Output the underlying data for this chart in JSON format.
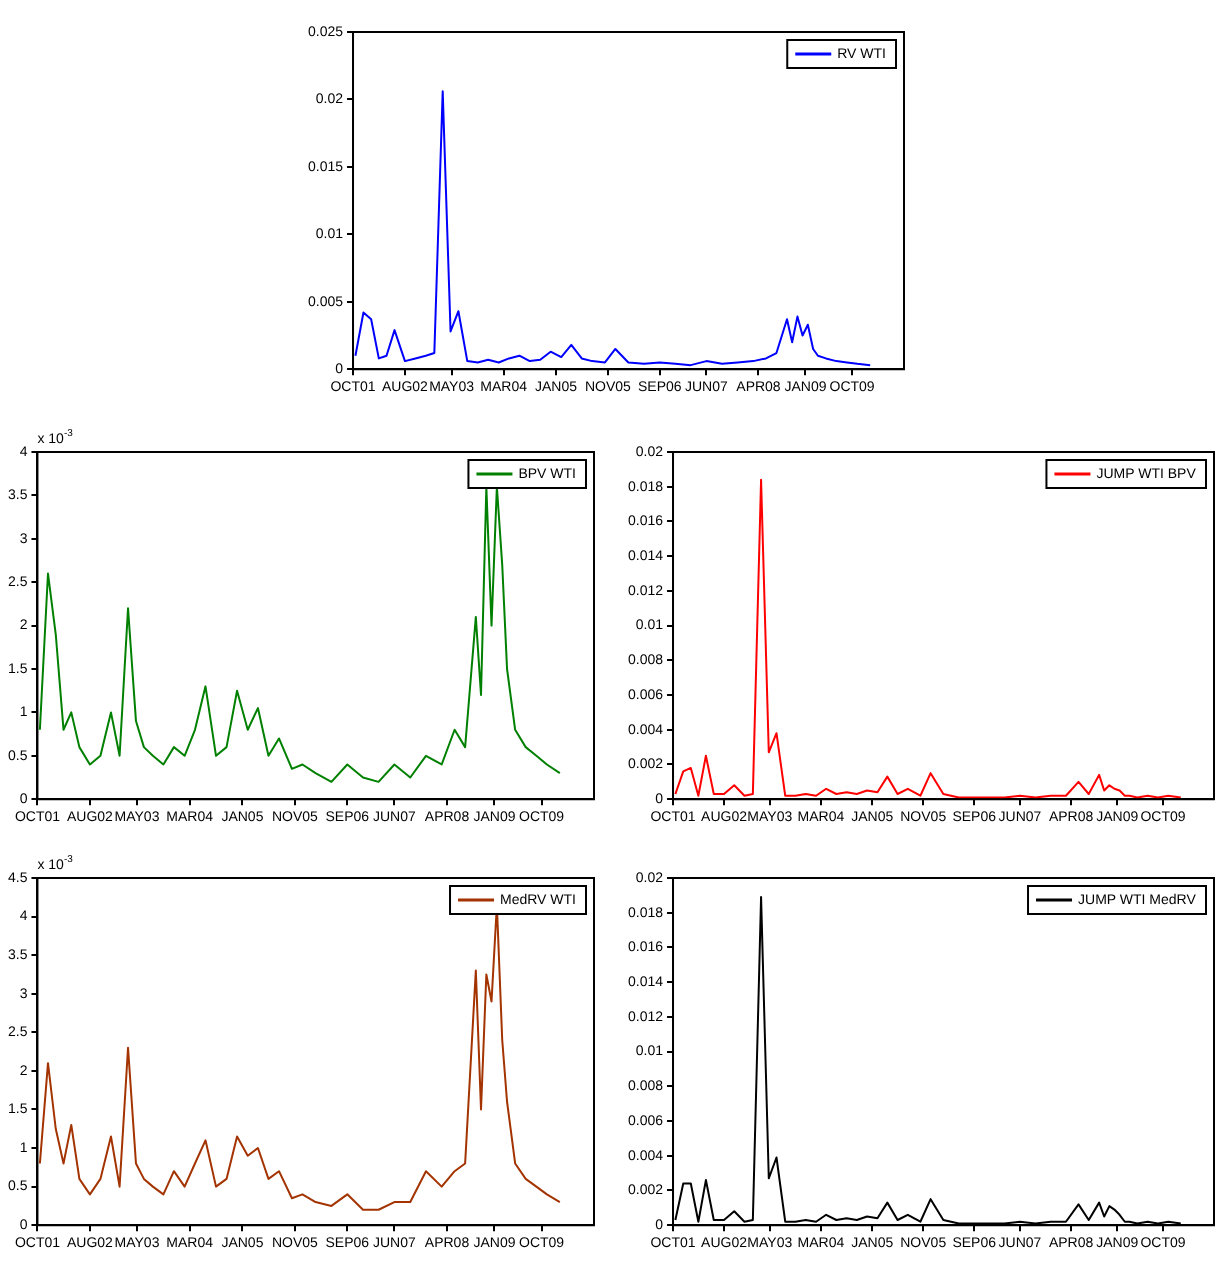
{
  "chart_data": [
    {
      "type": "line",
      "legend": "top right",
      "x": [
        "2001-10-15",
        "2001-12-01",
        "2002-01-15",
        "2002-03-01",
        "2002-04-15",
        "2002-06-01",
        "2002-08-01",
        "2002-10-01",
        "2002-12-01",
        "2003-01-20",
        "2003-03-10",
        "2003-04-25",
        "2003-06-10",
        "2003-08-01",
        "2003-10-01",
        "2003-12-01",
        "2004-02-01",
        "2004-04-01",
        "2004-06-01",
        "2004-08-01",
        "2004-10-01",
        "2004-12-01",
        "2005-02-01",
        "2005-04-01",
        "2005-06-01",
        "2005-08-01",
        "2005-10-15",
        "2005-12-15",
        "2006-03-01",
        "2006-06-01",
        "2006-09-01",
        "2006-12-01",
        "2007-03-01",
        "2007-06-01",
        "2007-09-01",
        "2007-12-01",
        "2008-03-01",
        "2008-05-15",
        "2008-07-15",
        "2008-09-15",
        "2008-10-15",
        "2008-11-15",
        "2008-12-15",
        "2009-01-15",
        "2009-02-15",
        "2009-03-15",
        "2009-05-01",
        "2009-07-01",
        "2009-09-01",
        "2009-11-01",
        "2010-01-15"
      ],
      "series": [
        {
          "name": "RV WTI",
          "color": "#0000ff",
          "values": [
            0.001,
            0.0042,
            0.0037,
            0.0008,
            0.001,
            0.0029,
            0.0006,
            0.0008,
            0.001,
            0.0012,
            0.0206,
            0.0028,
            0.0043,
            0.0006,
            0.0005,
            0.0007,
            0.0005,
            0.0008,
            0.001,
            0.0006,
            0.0007,
            0.0013,
            0.0009,
            0.0018,
            0.0008,
            0.0006,
            0.0005,
            0.0015,
            0.0005,
            0.0004,
            0.0005,
            0.0004,
            0.0003,
            0.0006,
            0.0004,
            0.0005,
            0.0006,
            0.0008,
            0.0012,
            0.0037,
            0.002,
            0.0039,
            0.0025,
            0.0033,
            0.0015,
            0.001,
            0.0008,
            0.0006,
            0.0005,
            0.0004,
            0.0003
          ]
        }
      ],
      "xlim": [
        "2001-10-01",
        "2010-08-01"
      ],
      "xticks": [
        {
          "value": "2001-10-01",
          "label": "OCT01"
        },
        {
          "value": "2002-08-01",
          "label": "AUG02"
        },
        {
          "value": "2003-05-01",
          "label": "MAY03"
        },
        {
          "value": "2004-03-01",
          "label": "MAR04"
        },
        {
          "value": "2005-01-01",
          "label": "JAN05"
        },
        {
          "value": "2005-11-01",
          "label": "NOV05"
        },
        {
          "value": "2006-09-01",
          "label": "SEP06"
        },
        {
          "value": "2007-06-01",
          "label": "JUN07"
        },
        {
          "value": "2008-04-01",
          "label": "APR08"
        },
        {
          "value": "2009-01-01",
          "label": "JAN09"
        },
        {
          "value": "2009-10-01",
          "label": "OCT09"
        }
      ],
      "ylim": [
        0,
        0.025
      ],
      "yticks": [
        0,
        0.005,
        0.01,
        0.015,
        0.02,
        0.025
      ]
    },
    {
      "type": "line",
      "legend": "top right",
      "annotations": [
        "x 10$^{-3}$"
      ],
      "x": [
        "2001-10-15",
        "2001-12-01",
        "2002-01-15",
        "2002-03-01",
        "2002-04-15",
        "2002-06-01",
        "2002-08-01",
        "2002-10-01",
        "2002-12-01",
        "2003-01-20",
        "2003-03-10",
        "2003-04-25",
        "2003-06-10",
        "2003-08-01",
        "2003-10-01",
        "2003-12-01",
        "2004-02-01",
        "2004-04-01",
        "2004-06-01",
        "2004-08-01",
        "2004-10-01",
        "2004-12-01",
        "2005-02-01",
        "2005-04-01",
        "2005-06-01",
        "2005-08-01",
        "2005-10-15",
        "2005-12-15",
        "2006-03-01",
        "2006-06-01",
        "2006-09-01",
        "2006-12-01",
        "2007-03-01",
        "2007-06-01",
        "2007-09-01",
        "2007-12-01",
        "2008-03-01",
        "2008-05-15",
        "2008-07-15",
        "2008-09-15",
        "2008-10-15",
        "2008-11-15",
        "2008-12-15",
        "2009-01-15",
        "2009-02-15",
        "2009-03-15",
        "2009-05-01",
        "2009-07-01",
        "2009-09-01",
        "2009-11-01",
        "2010-01-15"
      ],
      "series": [
        {
          "name": "BPV WTI",
          "color": "#008000",
          "values": [
            0.8,
            2.6,
            1.9,
            0.8,
            1.0,
            0.6,
            0.4,
            0.5,
            1.0,
            0.5,
            2.2,
            0.9,
            0.6,
            0.5,
            0.4,
            0.6,
            0.5,
            0.8,
            1.3,
            0.5,
            0.6,
            1.25,
            0.8,
            1.05,
            0.5,
            0.7,
            0.35,
            0.4,
            0.3,
            0.2,
            0.4,
            0.25,
            0.2,
            0.4,
            0.25,
            0.5,
            0.4,
            0.8,
            0.6,
            2.1,
            1.2,
            3.6,
            2.0,
            3.6,
            2.7,
            1.5,
            0.8,
            0.6,
            0.5,
            0.4,
            0.3
          ]
        }
      ],
      "xlim": [
        "2001-10-01",
        "2010-08-01"
      ],
      "xticks": [
        {
          "value": "2001-10-01",
          "label": "OCT01"
        },
        {
          "value": "2002-08-01",
          "label": "AUG02"
        },
        {
          "value": "2003-05-01",
          "label": "MAY03"
        },
        {
          "value": "2004-03-01",
          "label": "MAR04"
        },
        {
          "value": "2005-01-01",
          "label": "JAN05"
        },
        {
          "value": "2005-11-01",
          "label": "NOV05"
        },
        {
          "value": "2006-09-01",
          "label": "SEP06"
        },
        {
          "value": "2007-06-01",
          "label": "JUN07"
        },
        {
          "value": "2008-04-01",
          "label": "APR08"
        },
        {
          "value": "2009-01-01",
          "label": "JAN09"
        },
        {
          "value": "2009-10-01",
          "label": "OCT09"
        }
      ],
      "ylim": [
        0,
        4
      ],
      "yticks": [
        0,
        0.5,
        1,
        1.5,
        2,
        2.5,
        3,
        3.5,
        4
      ]
    },
    {
      "type": "line",
      "legend": "top right",
      "x": [
        "2001-10-15",
        "2001-12-01",
        "2002-01-15",
        "2002-03-01",
        "2002-04-15",
        "2002-06-01",
        "2002-08-01",
        "2002-10-01",
        "2002-12-01",
        "2003-01-20",
        "2003-03-10",
        "2003-04-25",
        "2003-06-10",
        "2003-08-01",
        "2003-10-01",
        "2003-12-01",
        "2004-02-01",
        "2004-04-01",
        "2004-06-01",
        "2004-08-01",
        "2004-10-01",
        "2004-12-01",
        "2005-02-01",
        "2005-04-01",
        "2005-06-01",
        "2005-08-01",
        "2005-10-15",
        "2005-12-15",
        "2006-03-01",
        "2006-06-01",
        "2006-09-01",
        "2006-12-01",
        "2007-03-01",
        "2007-06-01",
        "2007-09-01",
        "2007-12-01",
        "2008-03-01",
        "2008-05-15",
        "2008-07-15",
        "2008-09-15",
        "2008-10-15",
        "2008-11-15",
        "2008-12-15",
        "2009-01-15",
        "2009-02-15",
        "2009-03-15",
        "2009-05-01",
        "2009-07-01",
        "2009-09-01",
        "2009-11-01",
        "2010-01-15"
      ],
      "series": [
        {
          "name": "JUMP WTI BPV",
          "color": "#ff0000",
          "values": [
            0.0003,
            0.0016,
            0.0018,
            0.0002,
            0.0025,
            0.0003,
            0.0003,
            0.0008,
            0.0002,
            0.0003,
            0.0184,
            0.0027,
            0.0038,
            0.0002,
            0.0002,
            0.0003,
            0.0002,
            0.0006,
            0.0003,
            0.0004,
            0.0003,
            0.0005,
            0.0004,
            0.0013,
            0.0003,
            0.0006,
            0.0002,
            0.0015,
            0.0003,
            0.0001,
            0.0001,
            0.0001,
            0.0001,
            0.0002,
            0.0001,
            0.0002,
            0.0002,
            0.001,
            0.0003,
            0.0014,
            0.0005,
            0.0008,
            0.0006,
            0.0005,
            0.0002,
            0.0002,
            0.0001,
            0.0002,
            0.0001,
            0.0002,
            0.0001
          ]
        }
      ],
      "xlim": [
        "2001-10-01",
        "2010-08-01"
      ],
      "xticks": [
        {
          "value": "2001-10-01",
          "label": "OCT01"
        },
        {
          "value": "2002-08-01",
          "label": "AUG02"
        },
        {
          "value": "2003-05-01",
          "label": "MAY03"
        },
        {
          "value": "2004-03-01",
          "label": "MAR04"
        },
        {
          "value": "2005-01-01",
          "label": "JAN05"
        },
        {
          "value": "2005-11-01",
          "label": "NOV05"
        },
        {
          "value": "2006-09-01",
          "label": "SEP06"
        },
        {
          "value": "2007-06-01",
          "label": "JUN07"
        },
        {
          "value": "2008-04-01",
          "label": "APR08"
        },
        {
          "value": "2009-01-01",
          "label": "JAN09"
        },
        {
          "value": "2009-10-01",
          "label": "OCT09"
        }
      ],
      "ylim": [
        0,
        0.02
      ],
      "yticks": [
        0,
        0.002,
        0.004,
        0.006,
        0.008,
        0.01,
        0.012,
        0.014,
        0.016,
        0.018,
        0.02
      ]
    },
    {
      "type": "line",
      "legend": "top right",
      "annotations": [
        "x 10$^{-3}$"
      ],
      "x": [
        "2001-10-15",
        "2001-12-01",
        "2002-01-15",
        "2002-03-01",
        "2002-04-15",
        "2002-06-01",
        "2002-08-01",
        "2002-10-01",
        "2002-12-01",
        "2003-01-20",
        "2003-03-10",
        "2003-04-25",
        "2003-06-10",
        "2003-08-01",
        "2003-10-01",
        "2003-12-01",
        "2004-02-01",
        "2004-04-01",
        "2004-06-01",
        "2004-08-01",
        "2004-10-01",
        "2004-12-01",
        "2005-02-01",
        "2005-04-01",
        "2005-06-01",
        "2005-08-01",
        "2005-10-15",
        "2005-12-15",
        "2006-03-01",
        "2006-06-01",
        "2006-09-01",
        "2006-12-01",
        "2007-03-01",
        "2007-06-01",
        "2007-09-01",
        "2007-12-01",
        "2008-03-01",
        "2008-05-15",
        "2008-07-15",
        "2008-09-15",
        "2008-10-15",
        "2008-11-15",
        "2008-12-15",
        "2009-01-15",
        "2009-02-15",
        "2009-03-15",
        "2009-05-01",
        "2009-07-01",
        "2009-09-01",
        "2009-11-01",
        "2010-01-15"
      ],
      "series": [
        {
          "name": "MedRV WTI",
          "color": "#a33300",
          "values": [
            0.8,
            2.1,
            1.25,
            0.8,
            1.3,
            0.6,
            0.4,
            0.6,
            1.15,
            0.5,
            2.3,
            0.8,
            0.6,
            0.5,
            0.4,
            0.7,
            0.5,
            0.8,
            1.1,
            0.5,
            0.6,
            1.15,
            0.9,
            1.0,
            0.6,
            0.7,
            0.35,
            0.4,
            0.3,
            0.25,
            0.4,
            0.2,
            0.2,
            0.3,
            0.3,
            0.7,
            0.5,
            0.7,
            0.8,
            3.3,
            1.5,
            3.25,
            2.9,
            4.15,
            2.4,
            1.6,
            0.8,
            0.6,
            0.5,
            0.4,
            0.3
          ]
        }
      ],
      "xlim": [
        "2001-10-01",
        "2010-08-01"
      ],
      "xticks": [
        {
          "value": "2001-10-01",
          "label": "OCT01"
        },
        {
          "value": "2002-08-01",
          "label": "AUG02"
        },
        {
          "value": "2003-05-01",
          "label": "MAY03"
        },
        {
          "value": "2004-03-01",
          "label": "MAR04"
        },
        {
          "value": "2005-01-01",
          "label": "JAN05"
        },
        {
          "value": "2005-11-01",
          "label": "NOV05"
        },
        {
          "value": "2006-09-01",
          "label": "SEP06"
        },
        {
          "value": "2007-06-01",
          "label": "JUN07"
        },
        {
          "value": "2008-04-01",
          "label": "APR08"
        },
        {
          "value": "2009-01-01",
          "label": "JAN09"
        },
        {
          "value": "2009-10-01",
          "label": "OCT09"
        }
      ],
      "ylim": [
        0,
        4.5
      ],
      "yticks": [
        0,
        0.5,
        1,
        1.5,
        2,
        2.5,
        3,
        3.5,
        4,
        4.5
      ]
    },
    {
      "type": "line",
      "legend": "top right",
      "x": [
        "2001-10-15",
        "2001-12-01",
        "2002-01-15",
        "2002-03-01",
        "2002-04-15",
        "2002-06-01",
        "2002-08-01",
        "2002-10-01",
        "2002-12-01",
        "2003-01-20",
        "2003-03-10",
        "2003-04-25",
        "2003-06-10",
        "2003-08-01",
        "2003-10-01",
        "2003-12-01",
        "2004-02-01",
        "2004-04-01",
        "2004-06-01",
        "2004-08-01",
        "2004-10-01",
        "2004-12-01",
        "2005-02-01",
        "2005-04-01",
        "2005-06-01",
        "2005-08-01",
        "2005-10-15",
        "2005-12-15",
        "2006-03-01",
        "2006-06-01",
        "2006-09-01",
        "2006-12-01",
        "2007-03-01",
        "2007-06-01",
        "2007-09-01",
        "2007-12-01",
        "2008-03-01",
        "2008-05-15",
        "2008-07-15",
        "2008-09-15",
        "2008-10-15",
        "2008-11-15",
        "2008-12-15",
        "2009-01-15",
        "2009-02-15",
        "2009-03-15",
        "2009-05-01",
        "2009-07-01",
        "2009-09-01",
        "2009-11-01",
        "2010-01-15"
      ],
      "series": [
        {
          "name": "JUMP WTI MedRV",
          "color": "#000000",
          "values": [
            0.0003,
            0.0024,
            0.0024,
            0.0002,
            0.0026,
            0.0003,
            0.0003,
            0.0008,
            0.0002,
            0.0003,
            0.0189,
            0.0027,
            0.0039,
            0.0002,
            0.0002,
            0.0003,
            0.0002,
            0.0006,
            0.0003,
            0.0004,
            0.0003,
            0.0005,
            0.0004,
            0.0013,
            0.0003,
            0.0006,
            0.0002,
            0.0015,
            0.0003,
            0.0001,
            0.0001,
            0.0001,
            0.0001,
            0.0002,
            0.0001,
            0.0002,
            0.0002,
            0.0012,
            0.0003,
            0.0013,
            0.0005,
            0.0011,
            0.0009,
            0.0006,
            0.0002,
            0.0002,
            0.0001,
            0.0002,
            0.0001,
            0.0002,
            0.0001
          ]
        }
      ],
      "xlim": [
        "2001-10-01",
        "2010-08-01"
      ],
      "xticks": [
        {
          "value": "2001-10-01",
          "label": "OCT01"
        },
        {
          "value": "2002-08-01",
          "label": "AUG02"
        },
        {
          "value": "2003-05-01",
          "label": "MAY03"
        },
        {
          "value": "2004-03-01",
          "label": "MAR04"
        },
        {
          "value": "2005-01-01",
          "label": "JAN05"
        },
        {
          "value": "2005-11-01",
          "label": "NOV05"
        },
        {
          "value": "2006-09-01",
          "label": "SEP06"
        },
        {
          "value": "2007-06-01",
          "label": "JUN07"
        },
        {
          "value": "2008-04-01",
          "label": "APR08"
        },
        {
          "value": "2009-01-01",
          "label": "JAN09"
        },
        {
          "value": "2009-10-01",
          "label": "OCT09"
        }
      ],
      "ylim": [
        0,
        0.02
      ],
      "yticks": [
        0,
        0.002,
        0.004,
        0.006,
        0.008,
        0.01,
        0.012,
        0.014,
        0.016,
        0.018,
        0.02
      ]
    }
  ]
}
